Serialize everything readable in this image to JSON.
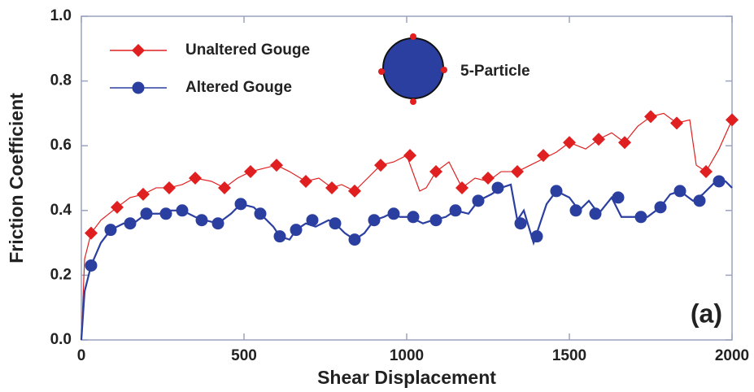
{
  "chart_data": {
    "type": "line",
    "xlabel": "Shear Displacement",
    "ylabel": "Friction Coefficient",
    "annotations": [
      "(a)",
      "5-Particle"
    ],
    "xlim": [
      0,
      2000
    ],
    "xticks": [
      0,
      500,
      1000,
      1500,
      2000
    ],
    "ylim": [
      0,
      1
    ],
    "yticks": [
      {
        "value": 0,
        "label": "0.0"
      },
      {
        "value": 0.2,
        "label": "0.2"
      },
      {
        "value": 0.4,
        "label": "0.4"
      },
      {
        "value": 0.6,
        "label": "0.6"
      },
      {
        "value": 0.8,
        "label": "0.8"
      },
      {
        "value": 1,
        "label": "1.0"
      }
    ],
    "legend": "upper left",
    "series": [
      {
        "name": "Unaltered Gouge",
        "color": "#e02020",
        "marker": "diamond",
        "x": [
          0,
          10,
          30,
          60,
          110,
          150,
          190,
          230,
          270,
          310,
          350,
          400,
          440,
          480,
          520,
          560,
          600,
          640,
          690,
          730,
          770,
          800,
          840,
          880,
          920,
          960,
          1000,
          1040,
          1060,
          1090,
          1130,
          1170,
          1210,
          1250,
          1290,
          1340,
          1380,
          1420,
          1460,
          1500,
          1550,
          1590,
          1630,
          1670,
          1710,
          1750,
          1790,
          1830,
          1870,
          1890,
          1920,
          1960,
          2000
        ],
        "values": [
          0,
          0.25,
          0.33,
          0.37,
          0.41,
          0.44,
          0.45,
          0.47,
          0.47,
          0.48,
          0.5,
          0.49,
          0.47,
          0.5,
          0.52,
          0.53,
          0.54,
          0.52,
          0.49,
          0.5,
          0.47,
          0.48,
          0.46,
          0.5,
          0.54,
          0.55,
          0.57,
          0.46,
          0.47,
          0.52,
          0.55,
          0.47,
          0.5,
          0.49,
          0.52,
          0.52,
          0.54,
          0.56,
          0.58,
          0.61,
          0.59,
          0.62,
          0.64,
          0.61,
          0.66,
          0.69,
          0.7,
          0.67,
          0.68,
          0.54,
          0.52,
          0.59,
          0.68
        ],
        "markers": {
          "x": [
            30,
            110,
            190,
            270,
            350,
            440,
            520,
            600,
            690,
            770,
            840,
            920,
            1010,
            1090,
            1170,
            1250,
            1340,
            1420,
            1500,
            1590,
            1670,
            1750,
            1830,
            1920,
            2000
          ],
          "values": [
            0.33,
            0.41,
            0.45,
            0.47,
            0.5,
            0.47,
            0.52,
            0.54,
            0.49,
            0.47,
            0.46,
            0.54,
            0.57,
            0.52,
            0.47,
            0.5,
            0.52,
            0.57,
            0.61,
            0.62,
            0.61,
            0.69,
            0.67,
            0.52,
            0.68
          ]
        }
      },
      {
        "name": "Altered Gouge",
        "color": "#2b3fa0",
        "marker": "circle",
        "x": [
          0,
          10,
          30,
          60,
          90,
          130,
          160,
          200,
          240,
          270,
          310,
          350,
          380,
          420,
          460,
          490,
          530,
          560,
          590,
          610,
          640,
          660,
          690,
          720,
          760,
          780,
          810,
          840,
          870,
          900,
          930,
          950,
          980,
          1010,
          1050,
          1080,
          1120,
          1150,
          1190,
          1220,
          1260,
          1290,
          1320,
          1340,
          1360,
          1390,
          1400,
          1430,
          1460,
          1500,
          1530,
          1560,
          1590,
          1630,
          1660,
          1700,
          1740,
          1780,
          1810,
          1840,
          1880,
          1910,
          1950,
          1980,
          2000
        ],
        "values": [
          0,
          0.15,
          0.23,
          0.3,
          0.34,
          0.36,
          0.36,
          0.39,
          0.39,
          0.4,
          0.4,
          0.38,
          0.37,
          0.36,
          0.39,
          0.42,
          0.41,
          0.38,
          0.35,
          0.32,
          0.31,
          0.34,
          0.36,
          0.35,
          0.37,
          0.36,
          0.33,
          0.31,
          0.33,
          0.37,
          0.38,
          0.39,
          0.38,
          0.38,
          0.36,
          0.37,
          0.38,
          0.4,
          0.39,
          0.43,
          0.45,
          0.47,
          0.48,
          0.37,
          0.4,
          0.3,
          0.33,
          0.42,
          0.46,
          0.44,
          0.4,
          0.43,
          0.39,
          0.44,
          0.38,
          0.38,
          0.38,
          0.41,
          0.45,
          0.46,
          0.43,
          0.45,
          0.49,
          0.49,
          0.47
        ],
        "markers": {
          "x": [
            30,
            90,
            150,
            200,
            260,
            310,
            370,
            420,
            490,
            550,
            610,
            660,
            710,
            780,
            840,
            900,
            960,
            1020,
            1090,
            1150,
            1220,
            1280,
            1350,
            1400,
            1460,
            1520,
            1580,
            1650,
            1720,
            1780,
            1840,
            1900,
            1960
          ],
          "values": [
            0.23,
            0.34,
            0.36,
            0.39,
            0.39,
            0.4,
            0.37,
            0.36,
            0.42,
            0.39,
            0.32,
            0.34,
            0.37,
            0.36,
            0.31,
            0.37,
            0.39,
            0.38,
            0.37,
            0.4,
            0.43,
            0.47,
            0.36,
            0.32,
            0.46,
            0.4,
            0.39,
            0.44,
            0.38,
            0.41,
            0.46,
            0.43,
            0.49
          ]
        }
      }
    ]
  }
}
